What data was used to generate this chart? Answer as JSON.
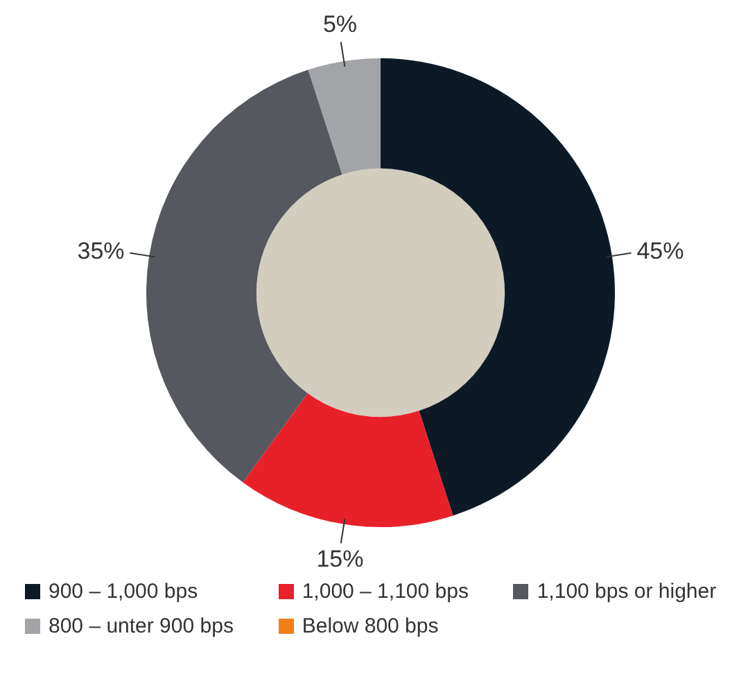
{
  "chart_data": {
    "type": "donut",
    "categories": [
      "900 – 1,000 bps",
      "1,000 – 1,100 bps",
      "1,100 bps or higher",
      "800 – unter 900 bps",
      "Below 800 bps"
    ],
    "values": [
      45,
      15,
      35,
      5,
      0
    ],
    "colors": [
      "#0d1a26",
      "#e8202a",
      "#55585f",
      "#a3a4a8",
      "#f07f1a"
    ],
    "value_labels": [
      "45%",
      "15%",
      "35%",
      "5%",
      null
    ],
    "legend": "bottom"
  }
}
